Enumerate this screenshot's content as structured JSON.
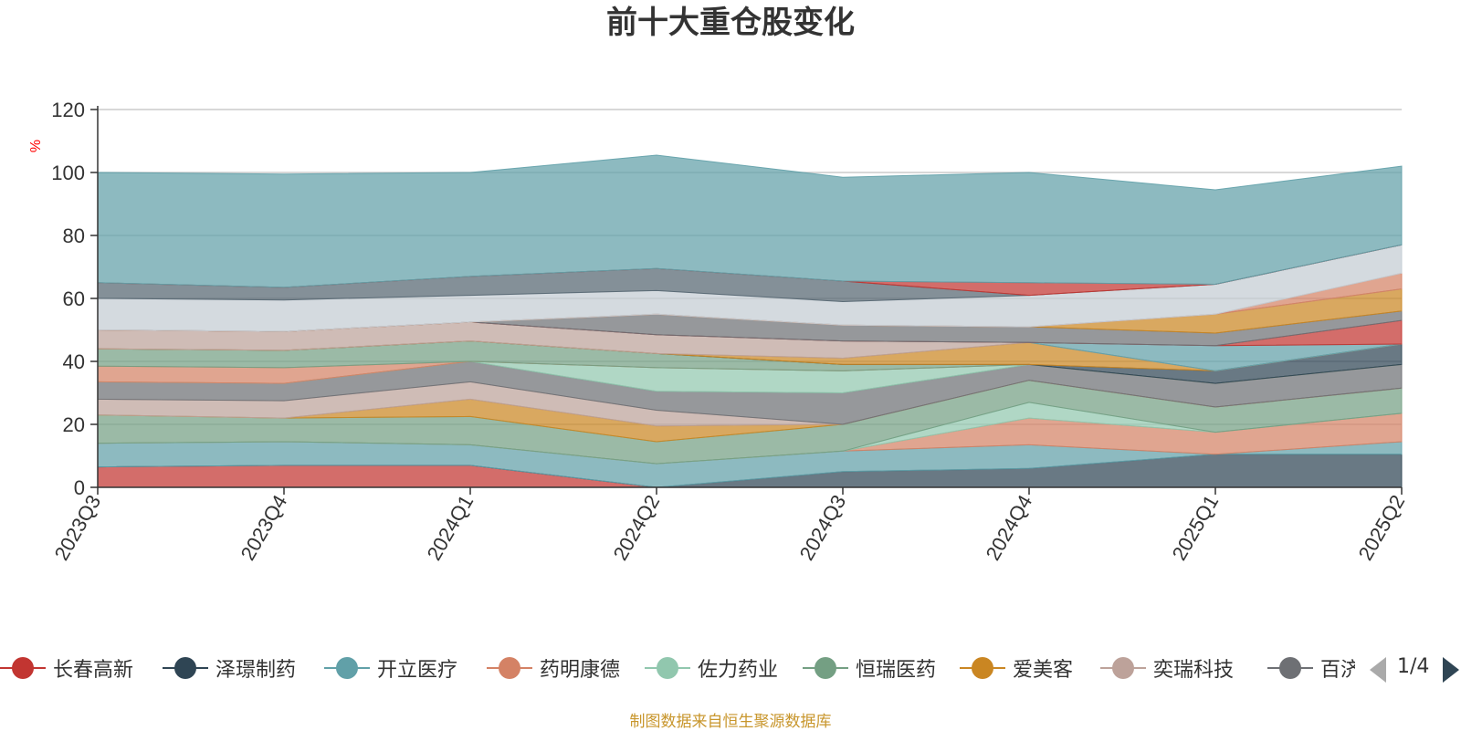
{
  "title": "前十大重仓股变化",
  "source": "制图数据来自恒生聚源数据库",
  "pager": {
    "text": "1/4"
  },
  "legend": [
    {
      "name": "长春高新",
      "color": "#c23531"
    },
    {
      "name": "泽璟制药",
      "color": "#2f4554"
    },
    {
      "name": "开立医疗",
      "color": "#61a0a8"
    },
    {
      "name": "药明康德",
      "color": "#d48265"
    },
    {
      "name": "佐力药业",
      "color": "#91c7ae"
    },
    {
      "name": "恒瑞医药",
      "color": "#749f83"
    },
    {
      "name": "爱美客",
      "color": "#ca8622"
    },
    {
      "name": "奕瑞科技",
      "color": "#bda29a"
    },
    {
      "name": "百济神州",
      "color": "#6e7074"
    }
  ],
  "chart_data": {
    "type": "area",
    "stacked": true,
    "ylabel": "%",
    "ylim": [
      0,
      120
    ],
    "yticks": [
      0,
      20,
      40,
      60,
      80,
      100,
      120
    ],
    "grid": true,
    "categories": [
      "2023Q3",
      "2023Q4",
      "2024Q1",
      "2024Q2",
      "2024Q3",
      "2024Q4",
      "2025Q1",
      "2025Q2"
    ],
    "series": [
      {
        "color": "#c23531",
        "values": [
          6.5,
          7,
          7,
          0,
          0,
          0,
          0,
          0
        ]
      },
      {
        "color": "#2f4554",
        "values": [
          0,
          0,
          0,
          0,
          5,
          6,
          10.5,
          10.5
        ]
      },
      {
        "color": "#61a0a8",
        "values": [
          7.5,
          7.5,
          6.5,
          7.5,
          6.5,
          7.5,
          0,
          4
        ]
      },
      {
        "color": "#d48265",
        "values": [
          0,
          0,
          0,
          0,
          0,
          8.5,
          7,
          9
        ]
      },
      {
        "color": "#91c7ae",
        "values": [
          0,
          0,
          0,
          0,
          0,
          5,
          0,
          0
        ]
      },
      {
        "color": "#749f83",
        "values": [
          9,
          7.5,
          9,
          7,
          8.5,
          7,
          8,
          8
        ]
      },
      {
        "color": "#ca8622",
        "values": [
          0,
          0,
          5.5,
          5,
          0,
          0,
          0,
          0
        ]
      },
      {
        "color": "#bda29a",
        "values": [
          5,
          5.5,
          5.5,
          5,
          0,
          0,
          0,
          0
        ]
      },
      {
        "color": "#6e7074",
        "values": [
          5.5,
          5.5,
          6.5,
          6,
          10,
          5,
          7.5,
          7.5
        ]
      },
      {
        "color": "#91c7ae",
        "values": [
          0,
          0,
          0,
          7.5,
          7,
          0,
          0,
          0
        ]
      },
      {
        "color": "#d48265",
        "values": [
          5,
          5,
          0,
          0,
          0,
          0,
          0,
          0
        ]
      },
      {
        "color": "#749f83",
        "values": [
          5.5,
          5.5,
          6.5,
          4.5,
          2,
          0,
          0,
          0
        ]
      },
      {
        "color": "#2f4554",
        "values": [
          0,
          0,
          0,
          0,
          0,
          0,
          4,
          6.5
        ]
      },
      {
        "color": "#ca8622",
        "values": [
          0,
          0,
          0,
          0,
          2,
          7,
          0,
          0
        ]
      },
      {
        "color": "#bda29a",
        "values": [
          6,
          6,
          6,
          6,
          5.5,
          0,
          0,
          0
        ]
      },
      {
        "color": "#61a0a8",
        "values": [
          0,
          0,
          0,
          0,
          0,
          0,
          8,
          0
        ]
      },
      {
        "color": "#c23531",
        "values": [
          0,
          0,
          0,
          0,
          0,
          0,
          0,
          7.5
        ]
      },
      {
        "color": "#6e7074",
        "values": [
          0,
          0,
          0,
          6.5,
          5,
          5,
          4,
          3
        ]
      },
      {
        "color": "#ca8622",
        "values": [
          0,
          0,
          0,
          0,
          0,
          0,
          6,
          7
        ]
      },
      {
        "color": "#bda29a",
        "values": [
          0,
          0,
          0,
          0,
          0,
          0,
          0,
          0
        ]
      },
      {
        "color": "#d48265",
        "values": [
          0,
          0,
          0,
          0,
          0,
          0,
          0,
          5
        ]
      },
      {
        "color": "#c4ccd3",
        "values": [
          10,
          10,
          8.5,
          7.5,
          7.5,
          10,
          9.5,
          9
        ]
      },
      {
        "color": "#546570",
        "values": [
          5,
          4,
          6,
          7,
          6.5,
          0,
          0,
          0
        ]
      },
      {
        "color": "#c23531",
        "values": [
          0,
          0,
          0,
          0,
          0,
          4,
          0,
          0
        ]
      },
      {
        "color": "#61a0a8",
        "values": [
          35,
          36,
          33,
          36,
          33,
          35,
          30,
          25
        ]
      }
    ]
  }
}
